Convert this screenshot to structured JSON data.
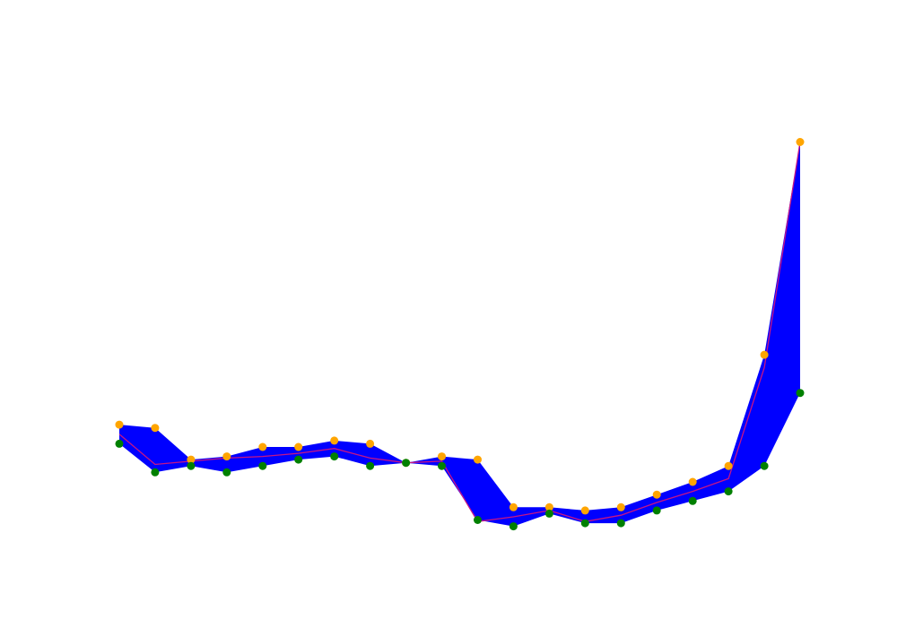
{
  "chart_data": {
    "type": "area",
    "x": [
      0,
      1,
      2,
      3,
      4,
      5,
      6,
      7,
      8,
      9,
      10,
      11,
      12,
      13,
      14,
      15,
      16,
      17,
      18,
      19
    ],
    "series": [
      {
        "role": "upper",
        "values": [
          119.5,
          119.4,
          118.4,
          118.5,
          118.8,
          118.8,
          119.0,
          118.9,
          118.3,
          118.5,
          118.4,
          116.9,
          116.9,
          116.8,
          116.9,
          117.3,
          117.7,
          118.2,
          121.7,
          128.4
        ],
        "color": "#FFA500"
      },
      {
        "role": "lower",
        "values": [
          118.9,
          118.0,
          118.2,
          118.0,
          118.2,
          118.4,
          118.5,
          118.2,
          118.3,
          118.2,
          116.5,
          116.3,
          116.7,
          116.4,
          116.4,
          116.8,
          117.1,
          117.4,
          118.2,
          120.5
        ],
        "color": "#008000"
      },
      {
        "role": "mid",
        "values": [
          119.2,
          118.25,
          118.35,
          118.45,
          118.5,
          118.6,
          118.75,
          118.45,
          118.3,
          118.35,
          116.45,
          116.6,
          116.8,
          116.45,
          116.65,
          117.05,
          117.4,
          117.8,
          121.3,
          128.4
        ],
        "color": "#C71585"
      }
    ],
    "band_color": "#0000FF",
    "ylim": [
      115.5,
      130.5
    ],
    "xlim": [
      -0.2,
      19.2
    ],
    "grid": false,
    "axes_visible": false
  }
}
